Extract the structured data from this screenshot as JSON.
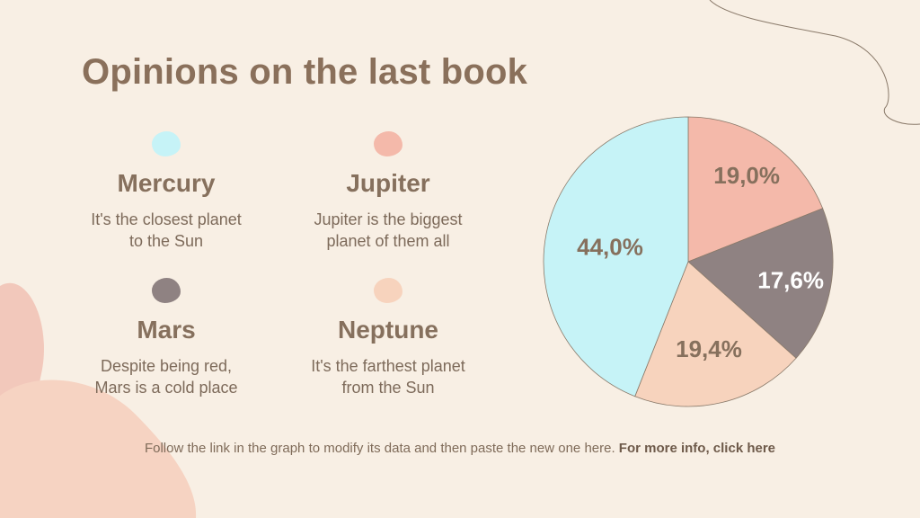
{
  "slide": {
    "title": "Opinions on the last book",
    "footer_text": "Follow the link in the graph to modify its data and then paste the new one here. ",
    "footer_link": "For more info, click here"
  },
  "legend": [
    {
      "name": "Mercury",
      "desc_line1": "It's the closest planet",
      "desc_line2": "to the Sun",
      "color": "#c6f3f7"
    },
    {
      "name": "Jupiter",
      "desc_line1": "Jupiter is the biggest",
      "desc_line2": "planet of them all",
      "color": "#f4b9aa"
    },
    {
      "name": "Mars",
      "desc_line1": "Despite being red,",
      "desc_line2": "Mars is a cold place",
      "color": "#8f8282"
    },
    {
      "name": "Neptune",
      "desc_line1": "It's the farthest planet",
      "desc_line2": "from the Sun",
      "color": "#f7d3bd"
    }
  ],
  "chart_data": {
    "type": "pie",
    "start": "top",
    "direction": "clockwise",
    "slices": [
      {
        "label": "19,0%",
        "value": 19.0,
        "color": "#f4b9aa"
      },
      {
        "label": "17,6%",
        "value": 17.6,
        "color": "#8f8282"
      },
      {
        "label": "19,4%",
        "value": 19.4,
        "color": "#f7d3bd"
      },
      {
        "label": "44,0%",
        "value": 44.0,
        "color": "#c6f3f7"
      }
    ],
    "slice_label_colors": [
      "#86705d",
      "#ffffff",
      "#86705d",
      "#86705d"
    ]
  }
}
